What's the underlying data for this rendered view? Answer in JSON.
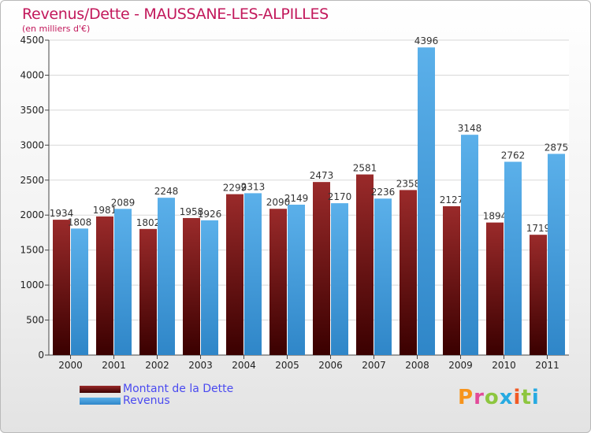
{
  "header": {
    "title": "Revenus/Dette - MAUSSANE-LES-ALPILLES",
    "subtitle": "(en milliers d'€)"
  },
  "logo": {
    "text": "Proxiti",
    "colors": [
      "#f7941d",
      "#e24a9a",
      "#8dc63f",
      "#27aae1",
      "#f15a24",
      "#8dc63f",
      "#27aae1"
    ]
  },
  "colors": {
    "dette": "#7a1515",
    "revenus": "#4ba3e3",
    "axis_text": "#222222",
    "grid": "#d8d8d8"
  },
  "chart_data": {
    "type": "bar",
    "categories": [
      "2000",
      "2001",
      "2002",
      "2003",
      "2004",
      "2005",
      "2006",
      "2007",
      "2008",
      "2009",
      "2010",
      "2011"
    ],
    "series": [
      {
        "name": "Montant de la Dette",
        "values": [
          1934,
          1981,
          1802,
          1958,
          2299,
          2090,
          2473,
          2581,
          2358,
          2127,
          1894,
          1719
        ]
      },
      {
        "name": "Revenus",
        "values": [
          1808,
          2089,
          2248,
          1926,
          2313,
          2149,
          2170,
          2236,
          4396,
          3148,
          2762,
          2875
        ]
      }
    ],
    "ylim": [
      0,
      4500
    ],
    "yticks": [
      0,
      500,
      1000,
      1500,
      2000,
      2500,
      3000,
      3500,
      4000,
      4500
    ],
    "grid": true,
    "legend": "bottom-left"
  }
}
